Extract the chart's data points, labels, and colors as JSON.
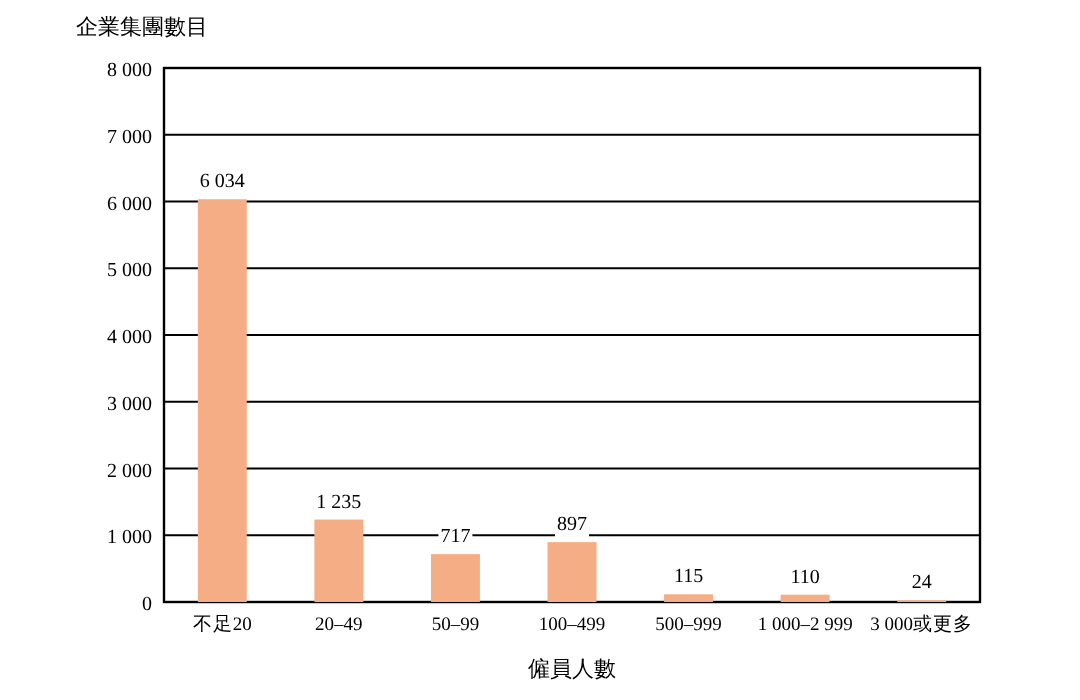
{
  "chart_data": {
    "type": "bar",
    "xlabel": "僱員人數",
    "ylabel": "企業集團數目",
    "categories": [
      "不足20",
      "20–49",
      "50–99",
      "100–499",
      "500–999",
      "1 000–2 999",
      "3 000或更多"
    ],
    "values": [
      6034,
      1235,
      717,
      897,
      115,
      110,
      24
    ],
    "value_labels": [
      "6 034",
      "1 235",
      "717",
      "897",
      "115",
      "110",
      "24"
    ],
    "color": "#f4ad84",
    "ylim": [
      0,
      8000
    ],
    "yticks": [
      0,
      {
        "value": 1000,
        "label": "1 000"
      },
      {
        "value": 2000,
        "label": "2 000"
      },
      {
        "value": 3000,
        "label": "3 000"
      },
      {
        "value": 4000,
        "label": "4 000"
      },
      {
        "value": 5000,
        "label": "5 000"
      },
      {
        "value": 6000,
        "label": "6 000"
      },
      {
        "value": 7000,
        "label": "7 000"
      },
      {
        "value": 8000,
        "label": "8 000"
      }
    ],
    "grid": "y"
  }
}
